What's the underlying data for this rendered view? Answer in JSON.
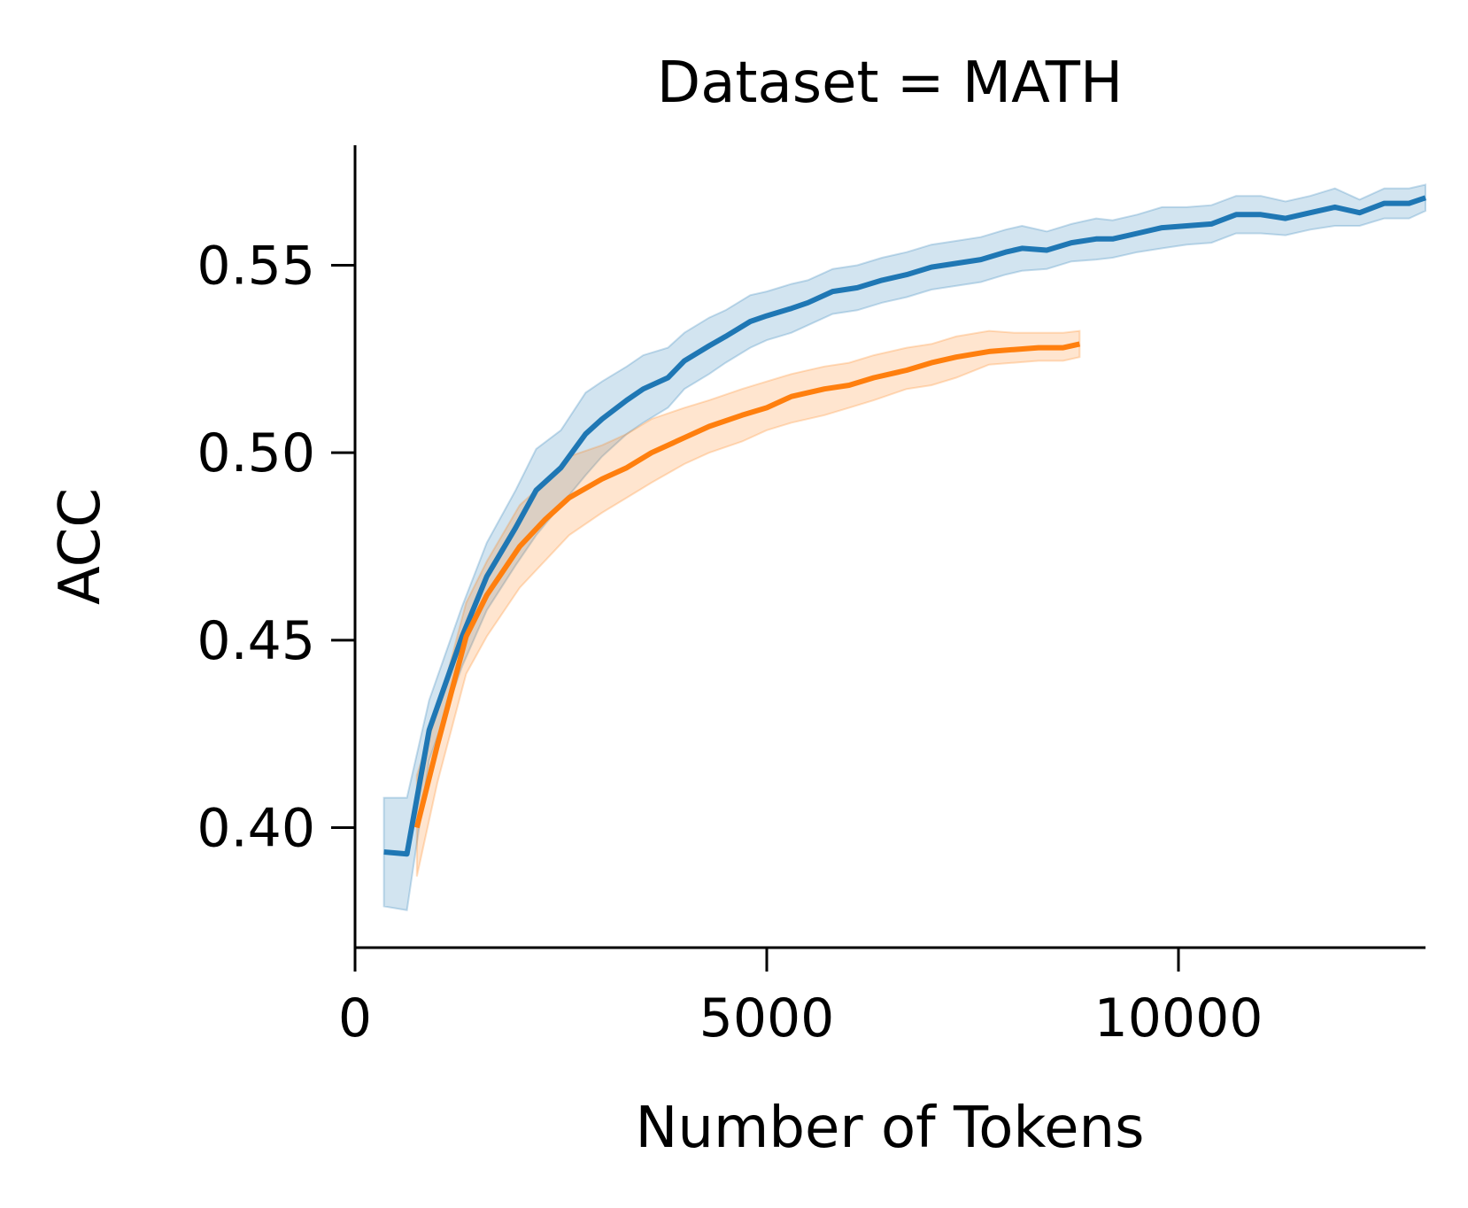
{
  "chart_data": {
    "type": "line",
    "title": "Dataset = MATH",
    "xlabel": "Number of Tokens",
    "ylabel": "ACC",
    "xlim": [
      0,
      13000
    ],
    "ylim": [
      0.368,
      0.582
    ],
    "xticks": [
      0,
      5000,
      10000
    ],
    "xtick_labels": [
      "0",
      "5000",
      "10000"
    ],
    "yticks": [
      0.4,
      0.45,
      0.5,
      0.55
    ],
    "ytick_labels": [
      "0.40",
      "0.45",
      "0.50",
      "0.55"
    ],
    "grid": false,
    "legend": "none",
    "series": [
      {
        "color": "#1f77b4",
        "x": [
          350,
          630,
          900,
          1300,
          1600,
          1950,
          2200,
          2500,
          2800,
          3000,
          3300,
          3500,
          3800,
          4000,
          4300,
          4500,
          4800,
          5000,
          5300,
          5500,
          5800,
          6100,
          6400,
          6700,
          7000,
          7300,
          7600,
          7900,
          8100,
          8400,
          8700,
          9000,
          9200,
          9500,
          9800,
          10100,
          10400,
          10700,
          11000,
          11300,
          11600,
          11900,
          12200,
          12500,
          12800,
          13000
        ],
        "y": [
          0.3935,
          0.393,
          0.426,
          0.451,
          0.467,
          0.48,
          0.49,
          0.496,
          0.505,
          0.509,
          0.514,
          0.517,
          0.52,
          0.5245,
          0.5285,
          0.531,
          0.535,
          0.5365,
          0.5385,
          0.54,
          0.543,
          0.544,
          0.546,
          0.5475,
          0.5495,
          0.5505,
          0.5515,
          0.5535,
          0.5545,
          0.554,
          0.556,
          0.557,
          0.557,
          0.5585,
          0.56,
          0.5605,
          0.561,
          0.5635,
          0.5635,
          0.5625,
          0.564,
          0.5655,
          0.564,
          0.5665,
          0.5665,
          0.568
        ],
        "lower": [
          0.379,
          0.378,
          0.418,
          0.443,
          0.458,
          0.47,
          0.478,
          0.486,
          0.494,
          0.499,
          0.505,
          0.508,
          0.512,
          0.517,
          0.521,
          0.524,
          0.528,
          0.53,
          0.532,
          0.534,
          0.537,
          0.538,
          0.54,
          0.5415,
          0.5435,
          0.5445,
          0.5455,
          0.5475,
          0.5485,
          0.549,
          0.551,
          0.5515,
          0.552,
          0.5535,
          0.5545,
          0.5555,
          0.556,
          0.5585,
          0.5585,
          0.558,
          0.5595,
          0.5605,
          0.5605,
          0.5625,
          0.5625,
          0.5645
        ],
        "upper": [
          0.408,
          0.408,
          0.434,
          0.459,
          0.476,
          0.49,
          0.501,
          0.506,
          0.516,
          0.519,
          0.523,
          0.526,
          0.528,
          0.532,
          0.536,
          0.538,
          0.542,
          0.543,
          0.545,
          0.546,
          0.549,
          0.55,
          0.552,
          0.5535,
          0.5555,
          0.5565,
          0.5575,
          0.5595,
          0.5605,
          0.559,
          0.561,
          0.5625,
          0.562,
          0.5635,
          0.5655,
          0.5655,
          0.566,
          0.5685,
          0.5685,
          0.567,
          0.5685,
          0.5705,
          0.5675,
          0.5705,
          0.5705,
          0.5715
        ]
      },
      {
        "color": "#ff7f0e",
        "x": [
          750,
          1000,
          1350,
          1600,
          2000,
          2300,
          2600,
          3000,
          3300,
          3600,
          4000,
          4300,
          4700,
          5000,
          5300,
          5700,
          6000,
          6300,
          6700,
          7000,
          7300,
          7700,
          8000,
          8300,
          8600,
          8800
        ],
        "y": [
          0.4,
          0.422,
          0.451,
          0.462,
          0.475,
          0.482,
          0.488,
          0.493,
          0.496,
          0.5,
          0.504,
          0.507,
          0.51,
          0.512,
          0.515,
          0.517,
          0.518,
          0.52,
          0.522,
          0.524,
          0.5255,
          0.527,
          0.5275,
          0.528,
          0.528,
          0.529
        ],
        "lower": [
          0.387,
          0.412,
          0.441,
          0.451,
          0.464,
          0.471,
          0.478,
          0.484,
          0.488,
          0.492,
          0.497,
          0.5,
          0.503,
          0.506,
          0.508,
          0.51,
          0.512,
          0.514,
          0.517,
          0.518,
          0.52,
          0.5235,
          0.524,
          0.5245,
          0.5245,
          0.5255
        ],
        "upper": [
          0.414,
          0.431,
          0.46,
          0.471,
          0.486,
          0.492,
          0.499,
          0.502,
          0.505,
          0.509,
          0.512,
          0.514,
          0.517,
          0.519,
          0.521,
          0.523,
          0.524,
          0.526,
          0.528,
          0.529,
          0.531,
          0.5325,
          0.532,
          0.532,
          0.532,
          0.5325
        ]
      }
    ]
  }
}
